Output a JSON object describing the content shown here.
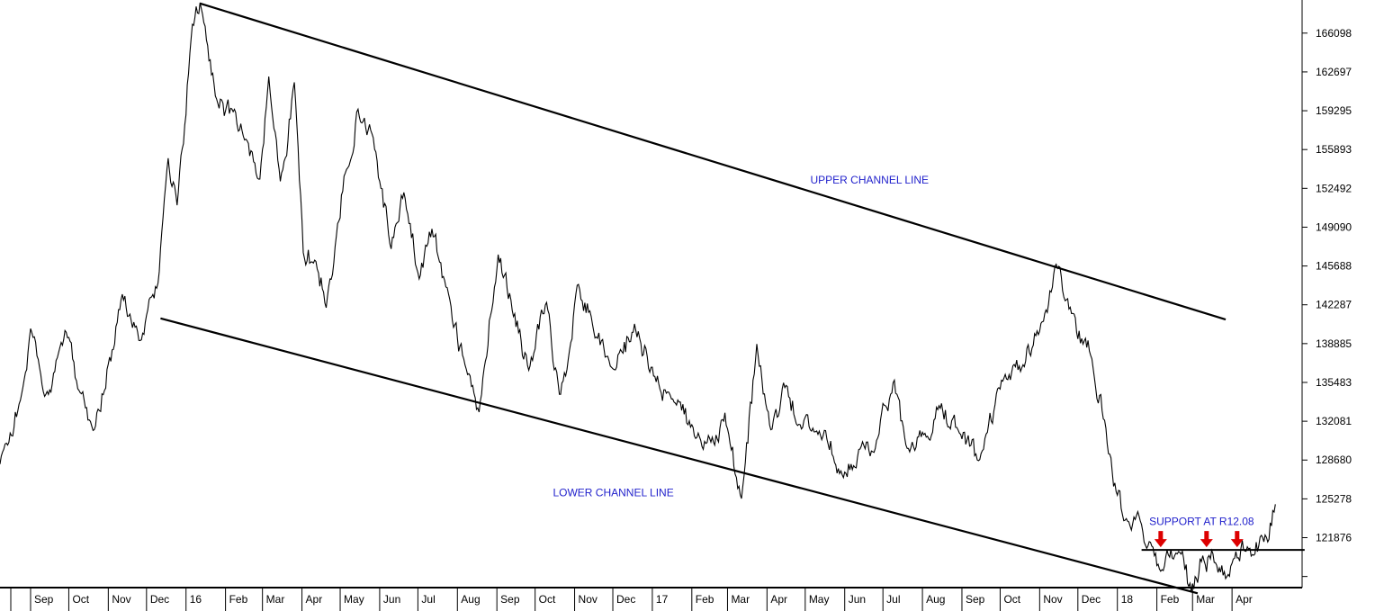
{
  "chart_data": {
    "type": "line",
    "title": "",
    "xlabel": "",
    "ylabel": "",
    "ylim": [
      117500,
      169000
    ],
    "y_ticks": [
      "166098",
      "162697",
      "159295",
      "155893",
      "152492",
      "149090",
      "145688",
      "142287",
      "138885",
      "135483",
      "132081",
      "128680",
      "125278",
      "121876",
      ""
    ],
    "y_tick_values": [
      166098,
      162697,
      159295,
      155893,
      152492,
      149090,
      145688,
      142287,
      138885,
      135483,
      132081,
      128680,
      125278,
      121876,
      118474
    ],
    "x_ticks": [
      "Sep",
      "Oct",
      "Nov",
      "Dec",
      "16",
      "Feb",
      "Mar",
      "Apr",
      "May",
      "Jun",
      "Jul",
      "Aug",
      "Sep",
      "Oct",
      "Nov",
      "Dec",
      "17",
      "Feb",
      "Mar",
      "Apr",
      "May",
      "Jun",
      "Jul",
      "Aug",
      "Sep",
      "Oct",
      "Nov",
      "Dec",
      "18",
      "Feb",
      "Mar",
      "Apr"
    ],
    "x_tick_dates": [
      "2015-09",
      "2015-10",
      "2015-11",
      "2015-12",
      "2016-01",
      "2016-02",
      "2016-03",
      "2016-04",
      "2016-05",
      "2016-06",
      "2016-07",
      "2016-08",
      "2016-09",
      "2016-10",
      "2016-11",
      "2016-12",
      "2017-01",
      "2017-02",
      "2017-03",
      "2017-04",
      "2017-05",
      "2017-06",
      "2017-07",
      "2017-08",
      "2017-09",
      "2017-10",
      "2017-11",
      "2017-12",
      "2018-01",
      "2018-02",
      "2018-03",
      "2018-04"
    ],
    "x_range": [
      "2015-08-08",
      "2018-05-26"
    ],
    "grid": false,
    "line_color": "#000000",
    "annotation_color": "#2222cc",
    "arrow_color": "#dd0000",
    "price_series": {
      "anchors": [
        [
          "2015-08-08",
          128300
        ],
        [
          "2015-08-25",
          134200
        ],
        [
          "2015-09-01",
          140100
        ],
        [
          "2015-09-15",
          134000
        ],
        [
          "2015-09-28",
          139800
        ],
        [
          "2015-10-20",
          131200
        ],
        [
          "2015-11-05",
          138500
        ],
        [
          "2015-11-12",
          143200
        ],
        [
          "2015-11-27",
          139200
        ],
        [
          "2015-12-10",
          144500
        ],
        [
          "2015-12-18",
          155200
        ],
        [
          "2015-12-25",
          150500
        ],
        [
          "2016-01-06",
          166500
        ],
        [
          "2016-01-12",
          168600
        ],
        [
          "2016-01-25",
          160500
        ],
        [
          "2016-02-07",
          158700
        ],
        [
          "2016-02-16",
          156800
        ],
        [
          "2016-02-28",
          153300
        ],
        [
          "2016-03-06",
          162000
        ],
        [
          "2016-03-15",
          152800
        ],
        [
          "2016-03-26",
          161500
        ],
        [
          "2016-04-02",
          147000
        ],
        [
          "2016-04-12",
          146200
        ],
        [
          "2016-04-20",
          142300
        ],
        [
          "2016-04-26",
          145800
        ],
        [
          "2016-05-05",
          154000
        ],
        [
          "2016-05-15",
          159400
        ],
        [
          "2016-05-27",
          157000
        ],
        [
          "2016-06-10",
          147500
        ],
        [
          "2016-06-20",
          152000
        ],
        [
          "2016-07-02",
          145000
        ],
        [
          "2016-07-12",
          148900
        ],
        [
          "2016-07-25",
          143200
        ],
        [
          "2016-08-07",
          136700
        ],
        [
          "2016-08-18",
          132800
        ],
        [
          "2016-09-02",
          146800
        ],
        [
          "2016-09-12",
          142800
        ],
        [
          "2016-09-26",
          136300
        ],
        [
          "2016-10-10",
          142800
        ],
        [
          "2016-10-20",
          134000
        ],
        [
          "2016-10-27",
          137800
        ],
        [
          "2016-11-04",
          143800
        ],
        [
          "2016-11-13",
          141500
        ],
        [
          "2016-12-01",
          136500
        ],
        [
          "2016-12-18",
          140500
        ],
        [
          "2017-01-02",
          136000
        ],
        [
          "2017-01-16",
          134000
        ],
        [
          "2017-02-04",
          130800
        ],
        [
          "2017-02-16",
          130500
        ],
        [
          "2017-02-27",
          132800
        ],
        [
          "2017-03-12",
          125000
        ],
        [
          "2017-03-24",
          138600
        ],
        [
          "2017-04-04",
          131200
        ],
        [
          "2017-04-16",
          135200
        ],
        [
          "2017-04-27",
          131500
        ],
        [
          "2017-05-12",
          131500
        ],
        [
          "2017-05-30",
          127500
        ],
        [
          "2017-06-14",
          130000
        ],
        [
          "2017-06-24",
          129500
        ],
        [
          "2017-07-10",
          135500
        ],
        [
          "2017-07-20",
          129500
        ],
        [
          "2017-08-04",
          130500
        ],
        [
          "2017-08-14",
          133800
        ],
        [
          "2017-08-30",
          131000
        ],
        [
          "2017-09-15",
          128600
        ],
        [
          "2017-10-05",
          136000
        ],
        [
          "2017-10-18",
          136800
        ],
        [
          "2017-10-26",
          138600
        ],
        [
          "2017-11-05",
          141500
        ],
        [
          "2017-11-16",
          145600
        ],
        [
          "2017-11-26",
          141500
        ],
        [
          "2017-12-05",
          139000
        ],
        [
          "2017-12-12",
          137500
        ],
        [
          "2017-12-22",
          132000
        ],
        [
          "2017-12-31",
          125800
        ],
        [
          "2018-01-08",
          123500
        ],
        [
          "2018-01-18",
          123800
        ],
        [
          "2018-01-26",
          121500
        ],
        [
          "2018-02-01",
          119500
        ],
        [
          "2018-02-10",
          120500
        ],
        [
          "2018-02-18",
          120300
        ],
        [
          "2018-02-28",
          117200
        ],
        [
          "2018-03-09",
          120200
        ],
        [
          "2018-03-20",
          119600
        ],
        [
          "2018-03-27",
          118100
        ],
        [
          "2018-04-03",
          119800
        ],
        [
          "2018-04-13",
          120800
        ],
        [
          "2018-04-26",
          121300
        ],
        [
          "2018-05-05",
          124800
        ]
      ]
    },
    "annotations": [
      {
        "text": "UPPER CHANNEL LINE",
        "date": "2017-05-05",
        "value": 152900
      },
      {
        "text": "LOWER CHANNEL LINE",
        "date": "2016-10-15",
        "value": 125500
      },
      {
        "text": "SUPPORT AT R12.08",
        "date": "2018-01-26",
        "value": 123000
      }
    ],
    "upper_channel": [
      [
        "2016-01-12",
        168700
      ],
      [
        "2018-03-27",
        141000
      ]
    ],
    "lower_channel": [
      [
        "2015-12-12",
        141100
      ],
      [
        "2018-03-05",
        117000
      ]
    ],
    "support_line": [
      [
        "2018-01-20",
        120800
      ],
      [
        "2018-05-28",
        120800
      ]
    ],
    "support_arrows": [
      "2018-02-04",
      "2018-03-12",
      "2018-04-05"
    ]
  }
}
